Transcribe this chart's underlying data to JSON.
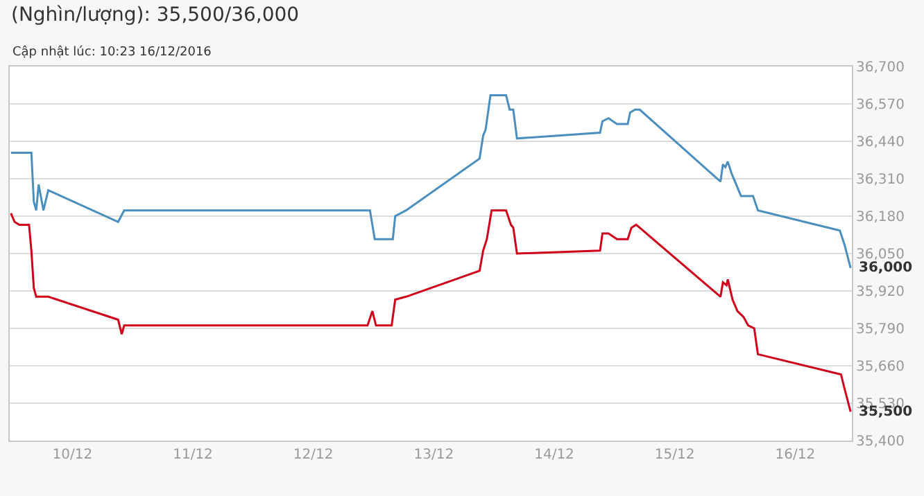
{
  "chart_data": {
    "type": "line",
    "title": "(Nghìn/lượng): 35,500/36,000",
    "subtitle": "Cập nhật lúc: 10:23 16/12/2016",
    "series": [
      {
        "color": "#4a8fbd",
        "x": [
          "2016-12-09T11:46",
          "2016-12-09T15:50",
          "2016-12-09T16:19",
          "2016-12-09T16:48",
          "2016-12-09T17:17",
          "2016-12-09T18:14",
          "2016-12-09T19:12",
          "2016-12-10T09:07",
          "2016-12-10T10:19",
          "2016-12-12T11:17",
          "2016-12-12T12:14",
          "2016-12-12T15:50",
          "2016-12-12T16:19",
          "2016-12-12T18:29",
          "2016-12-13T09:07",
          "2016-12-13T09:50",
          "2016-12-13T10:19",
          "2016-12-13T11:17",
          "2016-12-13T14:24",
          "2016-12-13T15:07",
          "2016-12-13T15:50",
          "2016-12-13T16:34",
          "2016-12-14T09:07",
          "2016-12-14T09:36",
          "2016-12-14T10:48",
          "2016-12-14T12:29",
          "2016-12-14T14:38",
          "2016-12-14T15:07",
          "2016-12-14T16:05",
          "2016-12-14T17:02",
          "2016-12-15T09:07",
          "2016-12-15T09:36",
          "2016-12-15T10:05",
          "2016-12-15T10:34",
          "2016-12-15T11:17",
          "2016-12-15T12:00",
          "2016-12-15T13:12",
          "2016-12-15T15:36",
          "2016-12-15T16:34",
          "2016-12-16T08:53",
          "2016-12-16T09:50",
          "2016-12-16T11:02"
        ],
        "values": [
          36400,
          36400,
          36230,
          36200,
          36290,
          36200,
          36270,
          36160,
          36200,
          36200,
          36100,
          36100,
          36180,
          36200,
          36380,
          36460,
          36480,
          36600,
          36600,
          36550,
          36550,
          36450,
          36470,
          36510,
          36520,
          36500,
          36500,
          36540,
          36550,
          36550,
          36300,
          36360,
          36350,
          36370,
          36330,
          36300,
          36250,
          36250,
          36200,
          36130,
          36080,
          36000
        ]
      },
      {
        "color": "#d0021b",
        "x": [
          "2016-12-09T11:46",
          "2016-12-09T12:29",
          "2016-12-09T13:26",
          "2016-12-09T15:22",
          "2016-12-09T15:50",
          "2016-12-09T16:19",
          "2016-12-09T16:48",
          "2016-12-09T19:12",
          "2016-12-10T09:07",
          "2016-12-10T09:50",
          "2016-12-10T10:19",
          "2016-12-12T10:48",
          "2016-12-12T11:46",
          "2016-12-12T12:29",
          "2016-12-12T15:36",
          "2016-12-12T16:19",
          "2016-12-12T18:29",
          "2016-12-13T09:07",
          "2016-12-13T09:50",
          "2016-12-13T10:34",
          "2016-12-13T11:31",
          "2016-12-13T14:24",
          "2016-12-13T15:22",
          "2016-12-13T15:50",
          "2016-12-13T16:34",
          "2016-12-14T09:07",
          "2016-12-14T09:36",
          "2016-12-14T10:48",
          "2016-12-14T12:29",
          "2016-12-14T14:38",
          "2016-12-14T15:22",
          "2016-12-14T16:19",
          "2016-12-15T09:07",
          "2016-12-15T09:36",
          "2016-12-15T10:19",
          "2016-12-15T10:34",
          "2016-12-15T11:31",
          "2016-12-15T12:29",
          "2016-12-15T13:41",
          "2016-12-15T14:38",
          "2016-12-15T15:50",
          "2016-12-15T16:34",
          "2016-12-16T09:07",
          "2016-12-16T09:50",
          "2016-12-16T11:02"
        ],
        "values": [
          36190,
          36160,
          36150,
          36150,
          36060,
          35930,
          35900,
          35900,
          35820,
          35770,
          35800,
          35800,
          35850,
          35800,
          35800,
          35890,
          35900,
          35990,
          36060,
          36100,
          36200,
          36200,
          36150,
          36140,
          36050,
          36060,
          36120,
          36120,
          36100,
          36100,
          36140,
          36150,
          35900,
          35950,
          35940,
          35960,
          35890,
          35850,
          35830,
          35800,
          35790,
          35700,
          35630,
          35580,
          35500
        ]
      }
    ],
    "xlim": [
      "2016-12-09T11:31",
      "2016-12-16T11:17"
    ],
    "xticks": [
      {
        "value": "2016-12-10",
        "label": "10/12"
      },
      {
        "value": "2016-12-11",
        "label": "11/12"
      },
      {
        "value": "2016-12-12",
        "label": "12/12"
      },
      {
        "value": "2016-12-13",
        "label": "13/12"
      },
      {
        "value": "2016-12-14",
        "label": "14/12"
      },
      {
        "value": "2016-12-15",
        "label": "15/12"
      },
      {
        "value": "2016-12-16",
        "label": "16/12"
      }
    ],
    "ylim": [
      35400,
      36700
    ],
    "yticks": [
      {
        "value": 35400,
        "label": "35,400"
      },
      {
        "value": 35530,
        "label": "35,530"
      },
      {
        "value": 35660,
        "label": "35,660"
      },
      {
        "value": 35790,
        "label": "35,790"
      },
      {
        "value": 35920,
        "label": "35,920"
      },
      {
        "value": 36050,
        "label": "36,050"
      },
      {
        "value": 36180,
        "label": "36,180"
      },
      {
        "value": 36310,
        "label": "36,310"
      },
      {
        "value": 36440,
        "label": "36,440"
      },
      {
        "value": 36570,
        "label": "36,570"
      },
      {
        "value": 36700,
        "label": "36,700"
      }
    ],
    "annotations": [
      {
        "text": "36,000",
        "x": "2016-12-16T11:02",
        "y": 36000
      },
      {
        "text": "35,500",
        "x": "2016-12-16T11:02",
        "y": 35500
      }
    ],
    "grid": "y",
    "marker": "none",
    "line_style": "solid"
  }
}
